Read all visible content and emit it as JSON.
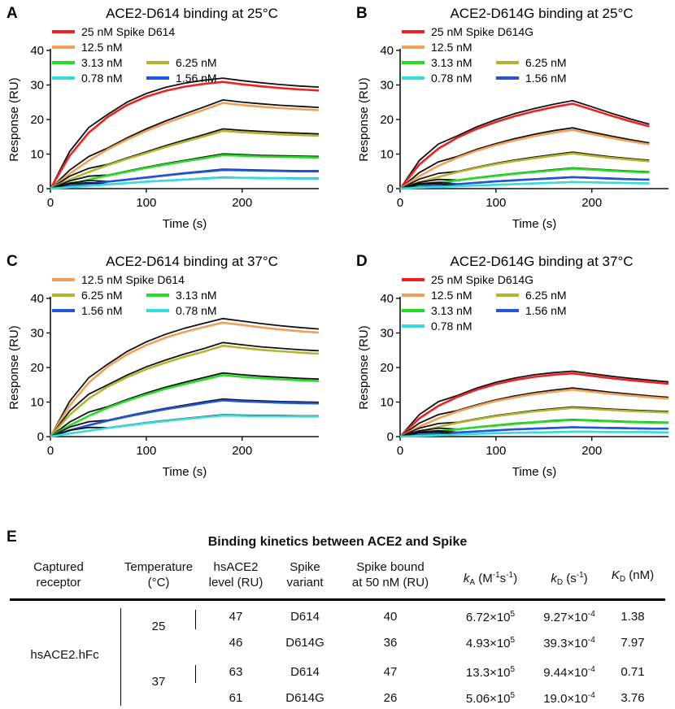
{
  "chart_data": [
    {
      "type": "line",
      "letter": "A",
      "title": "ACE2-D614 binding at 25°C",
      "xlabel": "Time (s)",
      "ylabel": "Response (RU)",
      "xlim": [
        0,
        280
      ],
      "ylim": [
        0,
        40
      ],
      "xticks": [
        "0",
        "100",
        "200"
      ],
      "yticks": [
        "0",
        "10",
        "20",
        "30",
        "40"
      ],
      "t_end_association": 180,
      "legend": [
        [
          "25 nM Spike D614"
        ],
        [
          "12.5 nM"
        ],
        [
          "3.13 nM",
          "6.25 nM"
        ],
        [
          "0.78 nM",
          "1.56 nM"
        ]
      ],
      "series": [
        {
          "name": "25 nM Spike D614",
          "color": "#ee2222",
          "x": [
            0,
            20,
            40,
            60,
            80,
            100,
            120,
            140,
            160,
            180,
            200,
            220,
            240,
            260,
            280
          ],
          "values": [
            0,
            9.5,
            16.2,
            20.8,
            24.2,
            26.6,
            28.3,
            29.5,
            30.3,
            30.9,
            30.2,
            29.6,
            29.1,
            28.7,
            28.4
          ]
        },
        {
          "name": "12.5 nM",
          "color": "#f2a057",
          "x": [
            0,
            20,
            40,
            60,
            80,
            100,
            120,
            140,
            160,
            180,
            200,
            220,
            240,
            260,
            280
          ],
          "values": [
            0,
            4.3,
            8.1,
            11.4,
            14.2,
            16.7,
            18.9,
            20.9,
            22.8,
            24.8,
            24.2,
            23.7,
            23.3,
            23.0,
            22.7
          ]
        },
        {
          "name": "6.25 nM",
          "color": "#b5b430",
          "x": [
            0,
            20,
            40,
            60,
            80,
            100,
            120,
            140,
            160,
            180,
            200,
            220,
            240,
            260,
            280
          ],
          "values": [
            0,
            2.6,
            4.8,
            6.8,
            8.6,
            10.3,
            12.0,
            13.6,
            15.1,
            16.7,
            16.3,
            16.0,
            15.7,
            15.5,
            15.3
          ]
        },
        {
          "name": "3.13 nM",
          "color": "#22dd22",
          "x": [
            0,
            20,
            40,
            60,
            80,
            100,
            120,
            140,
            160,
            180,
            200,
            220,
            240,
            260,
            280
          ],
          "values": [
            0,
            1.3,
            2.6,
            3.8,
            4.9,
            6.0,
            7.0,
            7.9,
            8.8,
            9.7,
            9.5,
            9.3,
            9.2,
            9.1,
            9.0
          ]
        },
        {
          "name": "1.56 nM",
          "color": "#2255dd",
          "x": [
            0,
            20,
            40,
            60,
            80,
            100,
            120,
            140,
            160,
            180,
            200,
            220,
            240,
            260,
            280
          ],
          "values": [
            0,
            0.7,
            1.4,
            2.0,
            2.6,
            3.2,
            3.8,
            4.4,
            4.9,
            5.4,
            5.3,
            5.2,
            5.1,
            5.0,
            5.0
          ]
        },
        {
          "name": "0.78 nM",
          "color": "#33dddd",
          "x": [
            0,
            20,
            40,
            60,
            80,
            100,
            120,
            140,
            160,
            180,
            200,
            220,
            240,
            260,
            280
          ],
          "values": [
            0,
            0.4,
            0.8,
            1.2,
            1.6,
            2.0,
            2.3,
            2.6,
            2.9,
            3.2,
            3.1,
            3.0,
            3.0,
            2.9,
            2.9
          ]
        }
      ]
    },
    {
      "type": "line",
      "letter": "B",
      "title": "ACE2-D614G binding at 25°C",
      "xlabel": "Time (s)",
      "ylabel": "Response (RU)",
      "xlim": [
        0,
        280
      ],
      "ylim": [
        0,
        40
      ],
      "xticks": [
        "0",
        "100",
        "200"
      ],
      "yticks": [
        "0",
        "10",
        "20",
        "30",
        "40"
      ],
      "t_end_association": 180,
      "legend": [
        [
          "25 nM Spike D614G"
        ],
        [
          "12.5 nM"
        ],
        [
          "3.13 nM",
          "6.25 nM"
        ],
        [
          "0.78 nM",
          "1.56 nM"
        ]
      ],
      "series": [
        {
          "name": "25 nM Spike D614G",
          "color": "#ee2222",
          "x": [
            0,
            20,
            40,
            60,
            80,
            100,
            120,
            140,
            160,
            180,
            200,
            220,
            240,
            260
          ],
          "values": [
            0,
            7.0,
            11.6,
            14.8,
            17.3,
            19.3,
            21.0,
            22.4,
            23.6,
            24.6,
            22.9,
            21.1,
            19.5,
            18.0
          ]
        },
        {
          "name": "12.5 nM",
          "color": "#f2a057",
          "x": [
            0,
            20,
            40,
            60,
            80,
            100,
            120,
            140,
            160,
            180,
            200,
            220,
            240,
            260
          ],
          "values": [
            0,
            3.6,
            6.6,
            9.0,
            11.0,
            12.6,
            14.0,
            15.2,
            16.2,
            17.0,
            15.8,
            14.7,
            13.7,
            12.8
          ]
        },
        {
          "name": "6.25 nM",
          "color": "#b5b430",
          "x": [
            0,
            20,
            40,
            60,
            80,
            100,
            120,
            140,
            160,
            180,
            200,
            220,
            240,
            260
          ],
          "values": [
            0,
            1.8,
            3.4,
            4.8,
            6.0,
            7.1,
            8.0,
            8.8,
            9.5,
            10.2,
            9.5,
            8.9,
            8.4,
            7.9
          ]
        },
        {
          "name": "3.13 nM",
          "color": "#22dd22",
          "x": [
            0,
            20,
            40,
            60,
            80,
            100,
            120,
            140,
            160,
            180,
            200,
            220,
            240,
            260
          ],
          "values": [
            0,
            0.9,
            1.7,
            2.4,
            3.1,
            3.7,
            4.3,
            4.8,
            5.3,
            5.8,
            5.5,
            5.2,
            4.9,
            4.7
          ]
        },
        {
          "name": "1.56 nM",
          "color": "#2255dd",
          "x": [
            0,
            20,
            40,
            60,
            80,
            100,
            120,
            140,
            160,
            180,
            200,
            220,
            240,
            260
          ],
          "values": [
            0,
            0.5,
            0.9,
            1.3,
            1.7,
            2.1,
            2.4,
            2.7,
            3.0,
            3.3,
            3.1,
            2.9,
            2.7,
            2.6
          ]
        },
        {
          "name": "0.78 nM",
          "color": "#33dddd",
          "x": [
            0,
            20,
            40,
            60,
            80,
            100,
            120,
            140,
            160,
            180,
            200,
            220,
            240,
            260
          ],
          "values": [
            0,
            0.3,
            0.5,
            0.7,
            0.9,
            1.1,
            1.3,
            1.5,
            1.7,
            1.9,
            1.8,
            1.7,
            1.6,
            1.5
          ]
        }
      ]
    },
    {
      "type": "line",
      "letter": "C",
      "title": "ACE2-D614 binding at 37°C",
      "xlabel": "Time (s)",
      "ylabel": "Response (RU)",
      "xlim": [
        0,
        280
      ],
      "ylim": [
        0,
        40
      ],
      "xticks": [
        "0",
        "100",
        "200"
      ],
      "yticks": [
        "0",
        "10",
        "20",
        "30",
        "40"
      ],
      "t_end_association": 180,
      "legend": [
        [
          "12.5 nM Spike D614"
        ],
        [
          "6.25 nM",
          "3.13 nM"
        ],
        [
          "1.56 nM",
          "0.78 nM"
        ]
      ],
      "series": [
        {
          "name": "12.5 nM Spike D614",
          "color": "#f2a057",
          "x": [
            0,
            20,
            40,
            60,
            80,
            100,
            120,
            140,
            160,
            180,
            200,
            220,
            240,
            260,
            280
          ],
          "values": [
            0,
            9.0,
            15.6,
            20.3,
            23.8,
            26.5,
            28.6,
            30.3,
            31.7,
            33.0,
            32.3,
            31.6,
            31.0,
            30.5,
            30.1
          ]
        },
        {
          "name": "6.25 nM",
          "color": "#b5b430",
          "x": [
            0,
            20,
            40,
            60,
            80,
            100,
            120,
            140,
            160,
            180,
            200,
            220,
            240,
            260,
            280
          ],
          "values": [
            0,
            6.3,
            11.0,
            14.5,
            17.2,
            19.5,
            21.4,
            23.1,
            24.6,
            26.3,
            25.7,
            25.1,
            24.7,
            24.3,
            24.0
          ]
        },
        {
          "name": "3.13 nM",
          "color": "#22dd22",
          "x": [
            0,
            20,
            40,
            60,
            80,
            100,
            120,
            140,
            160,
            180,
            200,
            220,
            240,
            260,
            280
          ],
          "values": [
            0,
            3.2,
            6.0,
            8.4,
            10.4,
            12.2,
            13.8,
            15.2,
            16.5,
            17.8,
            17.3,
            16.9,
            16.6,
            16.3,
            16.1
          ]
        },
        {
          "name": "1.56 nM",
          "color": "#2255dd",
          "x": [
            0,
            20,
            40,
            60,
            80,
            100,
            120,
            140,
            160,
            180,
            200,
            220,
            240,
            260,
            280
          ],
          "values": [
            0,
            1.8,
            3.3,
            4.6,
            5.8,
            6.9,
            7.9,
            8.8,
            9.7,
            10.5,
            10.2,
            10.0,
            9.8,
            9.7,
            9.6
          ]
        },
        {
          "name": "0.78 nM",
          "color": "#33dddd",
          "x": [
            0,
            20,
            40,
            60,
            80,
            100,
            120,
            140,
            160,
            180,
            200,
            220,
            240,
            260,
            280
          ],
          "values": [
            0,
            0.9,
            1.7,
            2.5,
            3.2,
            3.9,
            4.5,
            5.1,
            5.6,
            6.1,
            6.0,
            5.9,
            5.9,
            5.8,
            5.8
          ]
        }
      ]
    },
    {
      "type": "line",
      "letter": "D",
      "title": "ACE2-D614G binding at 37°C",
      "xlabel": "Time (s)",
      "ylabel": "Response (RU)",
      "xlim": [
        0,
        280
      ],
      "ylim": [
        0,
        40
      ],
      "xticks": [
        "0",
        "100",
        "200"
      ],
      "yticks": [
        "0",
        "10",
        "20",
        "30",
        "40"
      ],
      "t_end_association": 180,
      "legend": [
        [
          "25 nM Spike D614G"
        ],
        [
          "12.5 nM",
          "6.25 nM"
        ],
        [
          "3.13 nM",
          "1.56 nM"
        ],
        [
          "0.78 nM"
        ]
      ],
      "series": [
        {
          "name": "25 nM Spike D614G",
          "color": "#ee2222",
          "x": [
            0,
            20,
            40,
            60,
            80,
            100,
            120,
            140,
            160,
            180,
            200,
            220,
            240,
            260,
            280
          ],
          "values": [
            0,
            5.3,
            8.9,
            11.5,
            13.6,
            15.2,
            16.4,
            17.3,
            17.9,
            18.3,
            17.6,
            16.9,
            16.3,
            15.8,
            15.3
          ]
        },
        {
          "name": "12.5 nM",
          "color": "#f2a057",
          "x": [
            0,
            20,
            40,
            60,
            80,
            100,
            120,
            140,
            160,
            180,
            200,
            220,
            240,
            260,
            280
          ],
          "values": [
            0,
            2.9,
            5.3,
            7.3,
            8.9,
            10.3,
            11.4,
            12.3,
            13.0,
            13.6,
            13.0,
            12.4,
            11.9,
            11.4,
            11.0
          ]
        },
        {
          "name": "6.25 nM",
          "color": "#b5b430",
          "x": [
            0,
            20,
            40,
            60,
            80,
            100,
            120,
            140,
            160,
            180,
            200,
            220,
            240,
            260,
            280
          ],
          "values": [
            0,
            1.5,
            2.8,
            4.0,
            5.0,
            5.9,
            6.6,
            7.3,
            7.8,
            8.3,
            8.0,
            7.7,
            7.4,
            7.2,
            7.0
          ]
        },
        {
          "name": "3.13 nM",
          "color": "#22dd22",
          "x": [
            0,
            20,
            40,
            60,
            80,
            100,
            120,
            140,
            160,
            180,
            200,
            220,
            240,
            260,
            280
          ],
          "values": [
            0,
            0.8,
            1.5,
            2.1,
            2.7,
            3.2,
            3.7,
            4.1,
            4.5,
            4.8,
            4.6,
            4.4,
            4.2,
            4.1,
            4.0
          ]
        },
        {
          "name": "1.56 nM",
          "color": "#2255dd",
          "x": [
            0,
            20,
            40,
            60,
            80,
            100,
            120,
            140,
            160,
            180,
            200,
            220,
            240,
            260,
            280
          ],
          "values": [
            0,
            0.4,
            0.8,
            1.2,
            1.5,
            1.8,
            2.1,
            2.3,
            2.5,
            2.7,
            2.6,
            2.5,
            2.4,
            2.3,
            2.3
          ]
        },
        {
          "name": "0.78 nM",
          "color": "#33dddd",
          "x": [
            0,
            20,
            40,
            60,
            80,
            100,
            120,
            140,
            160,
            180,
            200,
            220,
            240,
            260,
            280
          ],
          "values": [
            0,
            0.2,
            0.4,
            0.6,
            0.8,
            1.0,
            1.1,
            1.2,
            1.3,
            1.4,
            1.4,
            1.3,
            1.3,
            1.3,
            1.2
          ]
        }
      ]
    },
    {
      "type": "table",
      "letter": "E",
      "title": "Binding kinetics between ACE2 and Spike",
      "columns": [
        {
          "lines": [
            "Captured",
            "receptor"
          ]
        },
        {
          "lines": [
            "Temperature",
            "(°C)"
          ]
        },
        {
          "lines": [
            "hsACE2",
            "level (RU)"
          ]
        },
        {
          "lines": [
            "Spike",
            "variant"
          ]
        },
        {
          "lines": [
            "Spike bound",
            "at 50 nM (RU)"
          ]
        },
        {
          "sym": "k",
          "sub": "A",
          "unit_pre": " (M",
          "sup1": "-1",
          "mid": "s",
          "sup2": "-1",
          "unit_post": ")"
        },
        {
          "sym": "k",
          "sub": "D",
          "unit_pre": " (s",
          "sup1": "-1",
          "unit_post": ")"
        },
        {
          "sym": "K",
          "sub": "D",
          "unit_pre": " (nM)"
        }
      ],
      "receptor": "hsACE2.hFc",
      "temperatures": [
        "25",
        "37"
      ],
      "rows": [
        {
          "level": "47",
          "variant": "D614",
          "bound": "40",
          "ka_m": "6.72×10",
          "ka_e": "5",
          "kd_m": "9.27×10",
          "kd_e": "-4",
          "KD": "1.38"
        },
        {
          "level": "46",
          "variant": "D614G",
          "bound": "36",
          "ka_m": "4.93×10",
          "ka_e": "5",
          "kd_m": "39.3×10",
          "kd_e": "-4",
          "KD": "7.97"
        },
        {
          "level": "63",
          "variant": "D614",
          "bound": "47",
          "ka_m": "13.3×10",
          "ka_e": "5",
          "kd_m": "9.44×10",
          "kd_e": "-4",
          "KD": "0.71"
        },
        {
          "level": "61",
          "variant": "D614G",
          "bound": "26",
          "ka_m": "5.06×10",
          "ka_e": "5",
          "kd_m": "19.0×10",
          "kd_e": "-4",
          "KD": "3.76"
        }
      ]
    }
  ]
}
